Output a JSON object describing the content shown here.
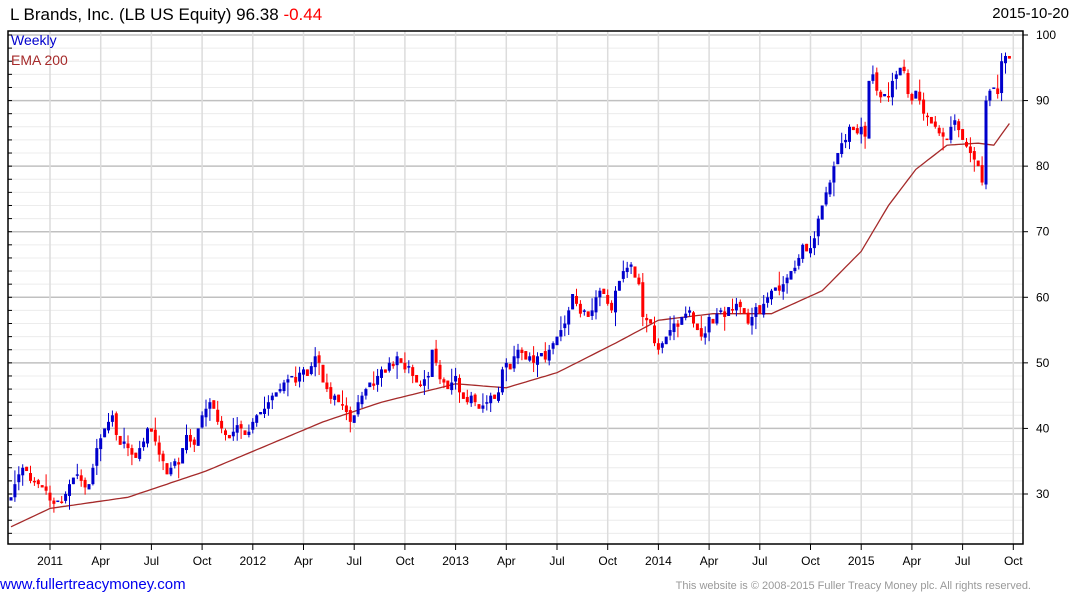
{
  "header": {
    "company": "L Brands, Inc. (LB US Equity)",
    "price": "96.38",
    "change": "-0.44",
    "date": "2015-10-20"
  },
  "legend": {
    "series": "Weekly",
    "ema": "EMA 200"
  },
  "footer": {
    "link": "www.fullertreacymoney.com",
    "copyright": "This website is © 2008-2015 Fuller Treacy Money plc. All rights reserved."
  },
  "colors": {
    "up": "#0000cc",
    "down": "#ff0000",
    "ema": "#a52a2a"
  },
  "chart_data": {
    "type": "candlestick",
    "title": "L Brands, Inc. (LB US Equity)",
    "frequency": "weekly",
    "ylim": [
      22,
      101
    ],
    "yticks": [
      30,
      40,
      50,
      60,
      70,
      80,
      90,
      100
    ],
    "xticks": [
      {
        "label": "2011",
        "week": 10
      },
      {
        "label": "Apr",
        "week": 23
      },
      {
        "label": "Jul",
        "week": 36
      },
      {
        "label": "Oct",
        "week": 49
      },
      {
        "label": "2012",
        "week": 62
      },
      {
        "label": "Apr",
        "week": 75
      },
      {
        "label": "Jul",
        "week": 88
      },
      {
        "label": "Oct",
        "week": 101
      },
      {
        "label": "2013",
        "week": 114
      },
      {
        "label": "Apr",
        "week": 127
      },
      {
        "label": "Jul",
        "week": 140
      },
      {
        "label": "Oct",
        "week": 153
      },
      {
        "label": "2014",
        "week": 166
      },
      {
        "label": "Apr",
        "week": 179
      },
      {
        "label": "Jul",
        "week": 192
      },
      {
        "label": "Oct",
        "week": 205
      },
      {
        "label": "2015",
        "week": 218
      },
      {
        "label": "Apr",
        "week": 231
      },
      {
        "label": "Jul",
        "week": 244
      },
      {
        "label": "Oct",
        "week": 257
      }
    ],
    "closes": [
      29.5,
      31.5,
      33,
      34,
      33.5,
      32,
      31.8,
      31.5,
      31,
      30.5,
      29,
      28.5,
      29,
      28.8,
      30,
      31.5,
      32.5,
      33,
      32,
      31,
      31.5,
      34,
      37,
      38.5,
      40,
      41,
      42,
      39,
      37.5,
      38,
      37,
      36,
      35.5,
      37,
      38,
      40,
      39.5,
      38,
      36,
      35,
      33,
      34,
      35,
      34.5,
      37,
      39,
      38,
      37.5,
      40,
      42,
      43,
      44,
      43,
      41,
      40,
      39,
      38.5,
      39.5,
      40.5,
      40,
      39,
      39.5,
      41,
      42,
      42.5,
      43,
      44,
      45,
      45.5,
      46,
      47,
      47.5,
      48,
      47,
      48.5,
      49,
      48,
      49.5,
      51,
      50,
      47,
      46,
      44.5,
      45,
      44,
      43.5,
      42.5,
      41,
      42,
      44,
      45,
      46,
      47,
      46.5,
      48,
      49,
      48.5,
      50,
      49.5,
      51,
      50,
      49,
      49.5,
      48,
      47,
      46.5,
      47.5,
      48,
      52,
      50,
      47.5,
      47,
      46,
      47,
      48,
      45.5,
      44.5,
      44,
      45,
      44,
      43,
      43.5,
      44,
      45,
      44.5,
      45.5,
      49,
      50,
      49,
      51,
      52,
      51.5,
      50.5,
      51,
      50,
      51,
      51.5,
      50.5,
      52,
      53,
      54,
      55,
      56,
      58,
      60.5,
      59,
      57.5,
      58,
      57,
      58,
      60,
      61,
      60.5,
      59,
      58,
      61,
      62.5,
      64,
      64.5,
      65,
      63,
      62,
      57,
      56.5,
      56,
      53,
      52,
      53,
      54,
      55,
      56,
      55.5,
      57,
      57.5,
      58,
      56,
      55,
      54,
      54.5,
      57,
      56,
      57.5,
      58,
      57,
      58.5,
      58,
      59,
      58.5,
      57.5,
      56,
      57,
      58.5,
      57.5,
      59,
      60,
      61,
      61.5,
      61,
      62,
      63,
      64,
      64.5,
      66,
      68,
      67,
      67.5,
      69,
      72,
      74,
      76,
      77.5,
      80,
      82,
      83.5,
      84,
      86,
      85.5,
      85,
      86,
      84.5,
      93,
      94,
      91.5,
      90.5,
      91,
      90.5,
      93,
      94,
      95,
      94.5,
      91,
      90,
      91.5,
      90,
      88,
      87.5,
      86.5,
      86,
      85,
      84.5,
      84,
      86,
      87,
      85.5,
      84,
      83,
      82,
      81,
      80,
      77.5,
      90,
      91.5,
      92,
      91,
      96,
      96.8,
      96.4
    ],
    "ema_200": [
      [
        0,
        25
      ],
      [
        10,
        27.8
      ],
      [
        30,
        29.5
      ],
      [
        50,
        33.5
      ],
      [
        62,
        36.5
      ],
      [
        80,
        41
      ],
      [
        95,
        44
      ],
      [
        114,
        46.8
      ],
      [
        127,
        46.2
      ],
      [
        140,
        48.5
      ],
      [
        155,
        53
      ],
      [
        166,
        56.5
      ],
      [
        180,
        57.5
      ],
      [
        195,
        57.5
      ],
      [
        208,
        61
      ],
      [
        218,
        67
      ],
      [
        225,
        74
      ],
      [
        232,
        79.5
      ],
      [
        240,
        83.2
      ],
      [
        248,
        83.5
      ],
      [
        252,
        83.2
      ],
      [
        256,
        86.5
      ]
    ]
  }
}
